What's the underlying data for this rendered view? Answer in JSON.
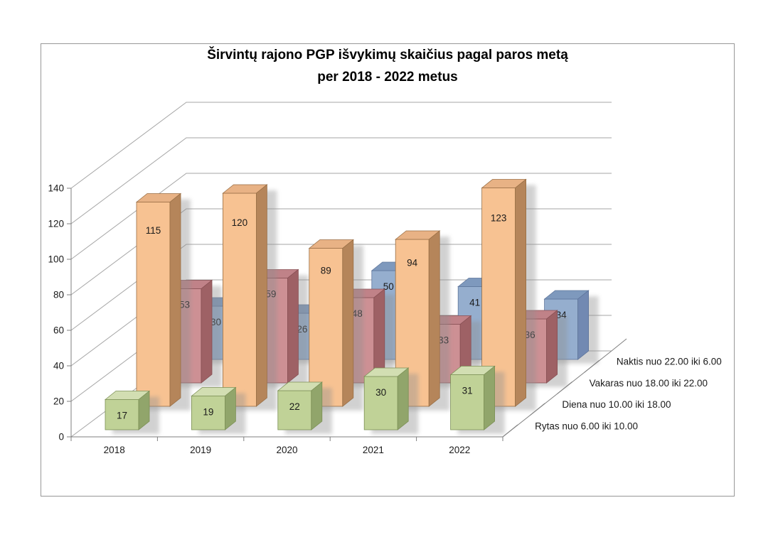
{
  "chart_data": {
    "type": "bar",
    "projection": "3d",
    "title": "Širvintų rajono PGP išvykimų skaičius pagal paros metą per 2018 - 2022 metus",
    "title_line1": "Širvintų rajono PGP išvykimų skaičius pagal paros metą",
    "title_line2": "per 2018 - 2022 metus",
    "categories": [
      "2018",
      "2019",
      "2020",
      "2021",
      "2022"
    ],
    "series": [
      {
        "name": "Rytas nuo 6.00 iki 10.00",
        "values": [
          17,
          19,
          22,
          30,
          31
        ],
        "color": "#C0D297",
        "color_top": "#D2DEB2",
        "color_side": "#91A56B",
        "color_edge": "#7C9055"
      },
      {
        "name": "Diena nuo 10.00 iki 18.00",
        "values": [
          115,
          120,
          89,
          94,
          123
        ],
        "color": "#F7C292",
        "color_top": "#E8B285",
        "color_side": "#B5855A",
        "color_edge": "#996F45"
      },
      {
        "name": "Vakaras nuo 18.00 iki 22.00",
        "values": [
          53,
          59,
          48,
          33,
          36
        ],
        "color": "#CD9094",
        "color_top": "#C08288",
        "color_side": "#9E6165",
        "color_edge": "#874F53"
      },
      {
        "name": "Naktis nuo 22.00 iki 6.00",
        "values": [
          30,
          26,
          50,
          41,
          34
        ],
        "color": "#95AECE",
        "color_top": "#7E99BD",
        "color_side": "#7289B2",
        "color_edge": "#5E759B"
      }
    ],
    "ylim": [
      0,
      140
    ],
    "ytick_step": 20,
    "yticks": [
      0,
      20,
      40,
      60,
      80,
      100,
      120,
      140
    ],
    "grid": true,
    "value_labels": "inside-end",
    "series_axis_position": "right",
    "colors": {
      "gridline": "#A6A6A6",
      "axis_line": "#7F7F7F",
      "chart_border": "#979797",
      "label_text": "#1A1A1A",
      "title_text": "#000000"
    }
  }
}
